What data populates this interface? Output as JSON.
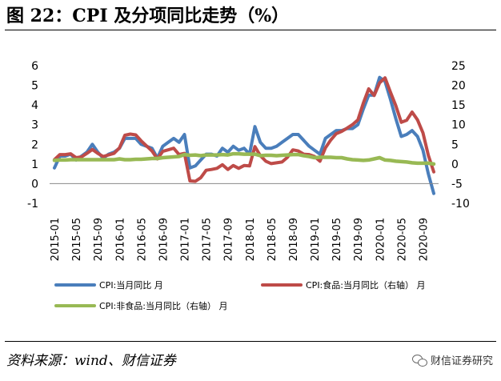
{
  "header": {
    "title": "图 22：CPI 及分项同比走势（%）"
  },
  "footer": {
    "source": "资料来源：wind、财信证券",
    "brand": "财信证券研究"
  },
  "colors": {
    "cpi": "#4a7ebb",
    "food": "#be4b48",
    "nonfood": "#98b954",
    "axis": "#888888"
  },
  "chart_data": {
    "type": "line",
    "title": "CPI 及分项同比走势（%）",
    "x": [
      "2015-01",
      "2015-02",
      "2015-03",
      "2015-04",
      "2015-05",
      "2015-06",
      "2015-07",
      "2015-08",
      "2015-09",
      "2015-10",
      "2015-11",
      "2015-12",
      "2016-01",
      "2016-02",
      "2016-03",
      "2016-04",
      "2016-05",
      "2016-06",
      "2016-07",
      "2016-08",
      "2016-09",
      "2016-10",
      "2016-11",
      "2016-12",
      "2017-01",
      "2017-02",
      "2017-03",
      "2017-04",
      "2017-05",
      "2017-06",
      "2017-07",
      "2017-08",
      "2017-09",
      "2017-10",
      "2017-11",
      "2017-12",
      "2018-01",
      "2018-02",
      "2018-03",
      "2018-04",
      "2018-05",
      "2018-06",
      "2018-07",
      "2018-08",
      "2018-09",
      "2018-10",
      "2018-11",
      "2018-12",
      "2019-01",
      "2019-02",
      "2019-03",
      "2019-04",
      "2019-05",
      "2019-06",
      "2019-07",
      "2019-08",
      "2019-09",
      "2019-10",
      "2019-11",
      "2019-12",
      "2020-01",
      "2020-02",
      "2020-03",
      "2020-04",
      "2020-05",
      "2020-06",
      "2020-07",
      "2020-08",
      "2020-09",
      "2020-10",
      "2020-11"
    ],
    "x_tick_labels": [
      "2015-01",
      "2015-05",
      "2015-09",
      "2016-01",
      "2016-05",
      "2016-09",
      "2017-01",
      "2017-05",
      "2017-09",
      "2018-01",
      "2018-05",
      "2018-09",
      "2019-01",
      "2019-05",
      "2019-09",
      "2020-01",
      "2020-05",
      "2020-09"
    ],
    "left_axis": {
      "ylim": [
        -1,
        6
      ],
      "ticks": [
        "-1",
        "0",
        "1",
        "2",
        "3",
        "4",
        "5",
        "6"
      ]
    },
    "right_axis": {
      "ylim": [
        -10,
        25
      ],
      "ticks": [
        "-10",
        "-5",
        "0",
        "5",
        "10",
        "15",
        "20",
        "25"
      ]
    },
    "series": [
      {
        "name": "CPI:当月同比 月",
        "axis": "left",
        "values": [
          0.8,
          1.4,
          1.4,
          1.5,
          1.2,
          1.4,
          1.6,
          2.0,
          1.6,
          1.3,
          1.5,
          1.6,
          1.8,
          2.3,
          2.3,
          2.3,
          2.0,
          1.9,
          1.8,
          1.3,
          1.9,
          2.1,
          2.3,
          2.1,
          2.5,
          0.8,
          0.9,
          1.2,
          1.5,
          1.5,
          1.4,
          1.8,
          1.6,
          1.9,
          1.7,
          1.8,
          1.5,
          2.9,
          2.1,
          1.8,
          1.8,
          1.9,
          2.1,
          2.3,
          2.5,
          2.5,
          2.2,
          1.9,
          1.7,
          1.5,
          2.3,
          2.5,
          2.7,
          2.7,
          2.8,
          2.8,
          3.0,
          3.8,
          4.5,
          4.5,
          5.4,
          5.2,
          4.3,
          3.3,
          2.4,
          2.5,
          2.7,
          2.4,
          1.7,
          0.5,
          -0.5
        ]
      },
      {
        "name": "CPI:食品:当月同比（右轴） 月",
        "axis": "right",
        "values": [
          1.1,
          2.4,
          2.4,
          2.6,
          1.6,
          1.8,
          2.7,
          3.7,
          2.7,
          1.9,
          2.3,
          2.7,
          4.1,
          7.3,
          7.6,
          7.4,
          5.9,
          4.6,
          3.3,
          1.3,
          3.2,
          3.6,
          4.0,
          2.4,
          2.7,
          -4.3,
          -4.4,
          -3.5,
          -1.6,
          -1.4,
          -1.1,
          -0.2,
          -1.4,
          -0.4,
          -1.1,
          -0.4,
          -0.5,
          4.4,
          2.1,
          0.7,
          0.1,
          0.3,
          0.5,
          1.7,
          3.6,
          3.3,
          2.5,
          2.4,
          1.9,
          0.7,
          4.1,
          6.1,
          7.7,
          8.3,
          9.1,
          10.0,
          11.2,
          15.5,
          19.1,
          17.4,
          20.6,
          21.9,
          18.3,
          14.8,
          10.6,
          11.1,
          13.2,
          11.2,
          7.9,
          2.2,
          -2.0
        ]
      },
      {
        "name": "CPI:非食品:当月同比（右轴） 月",
        "axis": "right",
        "values": [
          0.9,
          1.0,
          1.0,
          1.1,
          1.1,
          1.1,
          1.1,
          1.1,
          1.1,
          1.1,
          1.1,
          1.1,
          1.3,
          1.1,
          1.1,
          1.2,
          1.2,
          1.3,
          1.4,
          1.4,
          1.6,
          1.7,
          1.8,
          1.9,
          2.4,
          2.2,
          2.3,
          2.1,
          2.3,
          2.3,
          2.3,
          2.4,
          2.3,
          2.6,
          2.6,
          2.5,
          2.5,
          2.5,
          2.1,
          2.2,
          2.2,
          2.1,
          2.2,
          2.3,
          2.4,
          2.4,
          2.1,
          1.9,
          1.6,
          1.7,
          1.7,
          1.7,
          1.6,
          1.6,
          1.3,
          1.1,
          1.0,
          0.9,
          1.0,
          1.3,
          1.6,
          1.0,
          0.9,
          0.7,
          0.6,
          0.5,
          0.3,
          0.2,
          0.2,
          0.2,
          0.0
        ]
      }
    ],
    "legend": [
      {
        "label": "CPI:当月同比 月"
      },
      {
        "label": "CPI:食品:当月同比（右轴） 月"
      },
      {
        "label": "CPI:非食品:当月同比（右轴） 月"
      }
    ],
    "legend_position": "bottom"
  }
}
